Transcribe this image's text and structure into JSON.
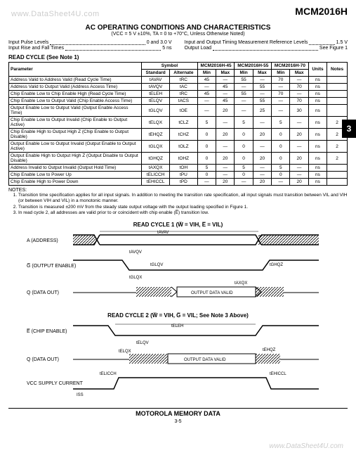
{
  "watermark_top": "www.DataSheet4U.com",
  "watermark_bot": "www.DataSheet4U.com",
  "part_number": "MCM2016H",
  "tab_number": "3",
  "title": "AC OPERATING CONDITIONS AND CHARACTERISTICS",
  "subtitle": "(VCC = 5 V ±10%, TA = 0 to +70°C, Unless Otherwise Noted)",
  "conditions": {
    "left": [
      {
        "label": "Input Pulse Levels",
        "value": "0 and 3.0 V"
      },
      {
        "label": "Input Rise and Fall Times",
        "value": "5 ns"
      }
    ],
    "right": [
      {
        "label": "Input and Output Timing Measurement Reference Levels",
        "value": "1.5 V"
      },
      {
        "label": "Output Load",
        "value": "See Figure 1"
      }
    ]
  },
  "read_cycle_label": "READ CYCLE (See Note 1)",
  "table": {
    "header_top": [
      "Parameter",
      "Symbol",
      "MCM2016H-45",
      "MCM2016H-55",
      "MCM2016H-70",
      "Units",
      "Notes"
    ],
    "header_sub": [
      "Standard",
      "Alternate",
      "Min",
      "Max",
      "Min",
      "Max",
      "Min",
      "Max"
    ],
    "rows": [
      {
        "param": "Address Valid to Address Valid (Read Cycle Time)",
        "std": "tAVAV",
        "alt": "tRC",
        "v": [
          "45",
          "—",
          "55",
          "—",
          "70",
          "—"
        ],
        "unit": "ns",
        "note": ""
      },
      {
        "param": "Address Valid to Output Valid (Address Access Time)",
        "std": "tAVQV",
        "alt": "tAC",
        "v": [
          "—",
          "45",
          "—",
          "55",
          "—",
          "70"
        ],
        "unit": "ns",
        "note": ""
      },
      {
        "param": "Chip Enable Low to Chip Enable High (Read Cycle Time)",
        "std": "tELEH",
        "alt": "tRC",
        "v": [
          "45",
          "—",
          "55",
          "—",
          "70",
          "—"
        ],
        "unit": "ns",
        "note": ""
      },
      {
        "param": "Chip Enable Low to Output Valid (Chip Enable Access Time)",
        "std": "tELQV",
        "alt": "tACS",
        "v": [
          "—",
          "45",
          "—",
          "55",
          "—",
          "70"
        ],
        "unit": "ns",
        "note": ""
      },
      {
        "param": "Output Enable Low to Output Valid (Output Enable Access Time)",
        "std": "tGLQV",
        "alt": "tOE",
        "v": [
          "—",
          "20",
          "—",
          "25",
          "—",
          "30"
        ],
        "unit": "ns",
        "note": ""
      },
      {
        "param": "Chip Enable Low to Output Invalid (Chip Enable to Output Active)",
        "std": "tELQX",
        "alt": "tCLZ",
        "v": [
          "5",
          "—",
          "5",
          "—",
          "5",
          "—"
        ],
        "unit": "ns",
        "note": "2"
      },
      {
        "param": "Chip Enable High to Output High Z (Chip Enable to Output Disable)",
        "std": "tEHQZ",
        "alt": "tCHZ",
        "v": [
          "0",
          "20",
          "0",
          "20",
          "0",
          "20"
        ],
        "unit": "ns",
        "note": "2"
      },
      {
        "param": "Output Enable Low to Output Invalid (Output Enable to Output Active)",
        "std": "tGLQX",
        "alt": "tOLZ",
        "v": [
          "0",
          "—",
          "0",
          "—",
          "0",
          "—"
        ],
        "unit": "ns",
        "note": "2"
      },
      {
        "param": "Output Enable High to Output High Z (Output Disable to Output Disable)",
        "std": "tGHQZ",
        "alt": "tOHZ",
        "v": [
          "0",
          "20",
          "0",
          "20",
          "0",
          "20"
        ],
        "unit": "ns",
        "note": "2"
      },
      {
        "param": "Address Invalid to Output Invalid (Output Hold Time)",
        "std": "tAXQX",
        "alt": "tOH",
        "v": [
          "5",
          "—",
          "5",
          "—",
          "5",
          "—"
        ],
        "unit": "ns",
        "note": ""
      },
      {
        "param": "Chip Enable Low to Power Up",
        "std": "tELICCH",
        "alt": "tPU",
        "v": [
          "0",
          "—",
          "0",
          "—",
          "0",
          "—"
        ],
        "unit": "ns",
        "note": ""
      },
      {
        "param": "Chip Enable High to Power Down",
        "std": "tEHICCL",
        "alt": "tPD",
        "v": [
          "—",
          "20",
          "—",
          "20",
          "—",
          "20"
        ],
        "unit": "ns",
        "note": ""
      }
    ]
  },
  "notes_label": "NOTES:",
  "notes": [
    "Transition time specification applies for all input signals. In addition to meeting the transition rate specification, all input signals must transition between VIL and VIH (or between VIH and VIL) in a monotonic manner.",
    "Transition is measured ±200 mV from the steady state output voltage with the output loading specified in Figure 1.",
    "In read cycle 2, all addresses are valid prior to or coincident with chip enable (E̅) transition low."
  ],
  "diagram1": {
    "title": "READ CYCLE 1 (W̅ = VIH, E̅ = VIL)",
    "signals": [
      "A (ADDRESS)",
      "G̅ (OUTPUT ENABLE)",
      "Q (DATA OUT)"
    ],
    "timing_labels": [
      "tAVAV",
      "tAVQV",
      "tGLQV",
      "tGLQX",
      "tAXQX",
      "tGHQZ"
    ],
    "data_valid": "OUTPUT DATA VALID"
  },
  "diagram2": {
    "title": "READ CYCLE 2 (W̅ = VIH, G̅ = VIL; See Note 3 Above)",
    "signals": [
      "E̅ (CHIP ENABLE)",
      "Q (DATA OUT)",
      "VCC SUPPLY CURRENT"
    ],
    "timing_labels": [
      "tELEH",
      "tELQV",
      "tELQX",
      "tEHQZ",
      "tEHICCL",
      "tELICCH",
      "ISS"
    ],
    "data_valid": "OUTPUT DATA VALID"
  },
  "footer": "MOTOROLA MEMORY DATA",
  "page": "3-5"
}
